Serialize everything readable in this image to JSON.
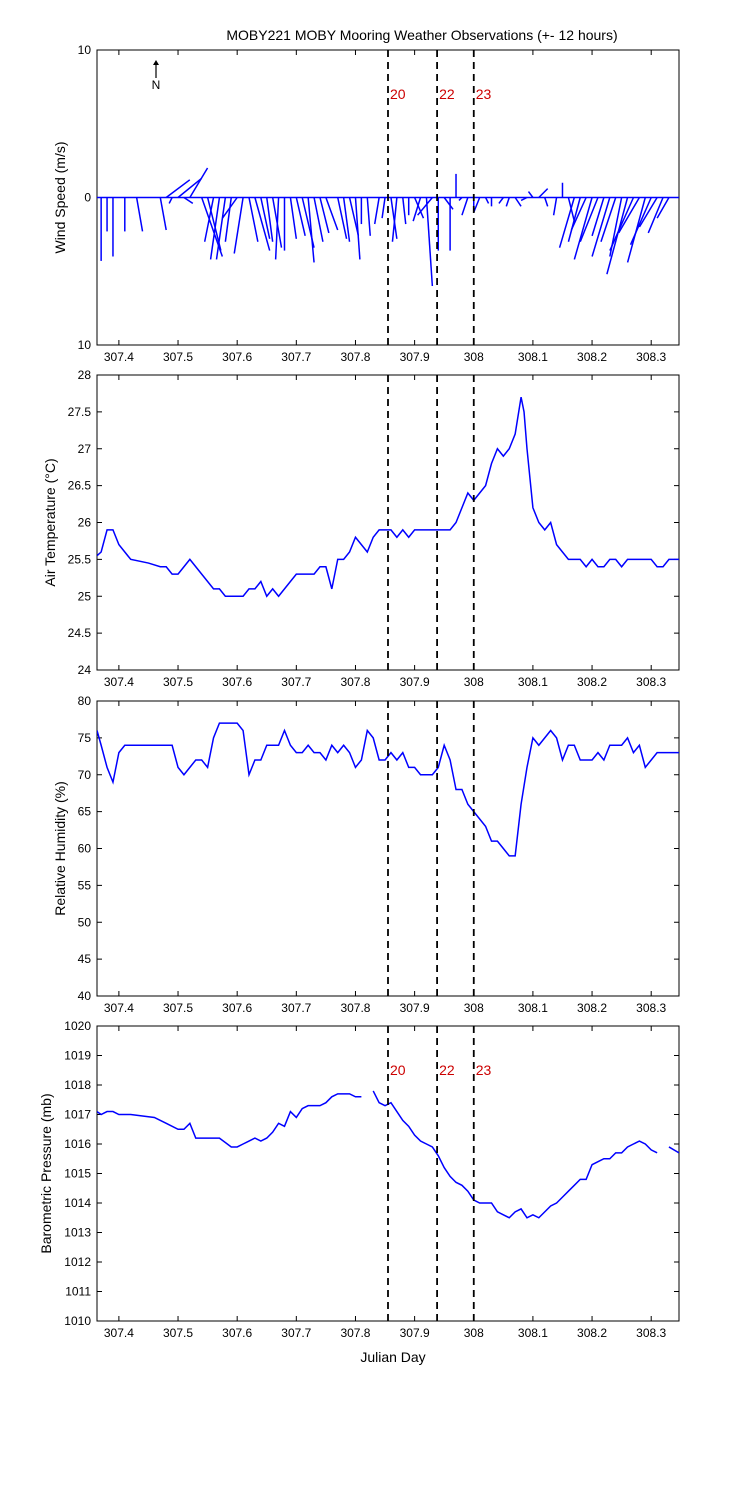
{
  "title": "MOBY221 MOBY Mooring Weather Observations (+- 12 hours)",
  "xlabel": "Julian Day",
  "x_ticks": [
    "307.4",
    "307.5",
    "307.6",
    "307.7",
    "307.8",
    "307.9",
    "308",
    "308.1",
    "308.2",
    "308.3"
  ],
  "x_tick_values": [
    307.4,
    307.5,
    307.6,
    307.7,
    307.8,
    307.9,
    308.0,
    308.1,
    308.2,
    308.3
  ],
  "xlim": [
    307.363,
    308.347
  ],
  "north_label": "N",
  "markers": [
    {
      "label": "20",
      "x": 307.855
    },
    {
      "label": "22",
      "x": 307.938
    },
    {
      "label": "23",
      "x": 308.0
    }
  ],
  "colors": {
    "data": "#0000ff",
    "marker_label": "#cc0000",
    "axis": "#000000"
  },
  "chart_data": [
    {
      "type": "line",
      "subtype": "wind-stick",
      "ylabel": "Wind Speed (m/s)",
      "ylim": [
        -10,
        10
      ],
      "y_ticks": [
        "10",
        "0",
        "10"
      ],
      "y_tick_values": [
        10,
        0,
        -10
      ],
      "note": "sticks drawn from baseline; u = east component, v = north component (m/s)",
      "series": [
        {
          "x": [
            307.37,
            307.38,
            307.39,
            307.41,
            307.43,
            307.47,
            307.48,
            307.49,
            307.5,
            307.51,
            307.52,
            307.54,
            307.55,
            307.56,
            307.57,
            307.58,
            307.59,
            307.6,
            307.61,
            307.62,
            307.63,
            307.64,
            307.65,
            307.66,
            307.67,
            307.68,
            307.69,
            307.7,
            307.71,
            307.72,
            307.73,
            307.74,
            307.75,
            307.77,
            307.78,
            307.79,
            307.8,
            307.81,
            307.82,
            307.84,
            307.85,
            307.86,
            307.87,
            307.88,
            307.89,
            307.9,
            307.91,
            307.92,
            307.93,
            307.94,
            307.95,
            307.96,
            307.97,
            307.98,
            307.99,
            308.0,
            308.01,
            308.02,
            308.03,
            308.05,
            308.06,
            308.07,
            308.09,
            308.1,
            308.11,
            308.12,
            308.14,
            308.15,
            308.16,
            308.17,
            308.18,
            308.19,
            308.2,
            308.21,
            308.22,
            308.23,
            308.24,
            308.25,
            308.26,
            308.27,
            308.28,
            308.29,
            308.3,
            308.31,
            308.32,
            308.33
          ],
          "u": [
            0,
            0,
            0,
            0,
            0.4,
            0.4,
            1.6,
            -0.2,
            1.6,
            0.6,
            1.2,
            1.4,
            0.9,
            -0.6,
            -0.6,
            -0.6,
            -0.4,
            -1.0,
            -0.6,
            0.6,
            1.0,
            0.6,
            0.4,
            0.6,
            -0.2,
            0,
            0.4,
            0.6,
            0.8,
            0.4,
            0.6,
            0.6,
            0.8,
            0.6,
            0.4,
            0.6,
            0.3,
            0,
            0.2,
            -0.3,
            -0.2,
            0.4,
            -0.3,
            0.2,
            0,
            0.6,
            -0.5,
            0.4,
            -1.0,
            0,
            0.6,
            0,
            0,
            -0.2,
            -0.4,
            0,
            -0.4,
            0.2,
            0,
            -0.3,
            -0.2,
            0.4,
            -0.4,
            -0.3,
            0.6,
            0.2,
            -0.2,
            0,
            0.4,
            -1.0,
            -0.8,
            -1.0,
            -1.2,
            -1.2,
            -0.8,
            -1.2,
            -1.0,
            -0.8,
            -1.4,
            -1.6,
            -1.4,
            -1.2,
            -1.4,
            -1.2,
            -1.0,
            -0.8
          ],
          "v": [
            -4.3,
            -2.3,
            -4.0,
            -2.3,
            -2.3,
            -2.2,
            1.2,
            -0.4,
            1.3,
            -0.4,
            2.0,
            -4.0,
            -3.6,
            -3.0,
            -4.2,
            -4.2,
            -3.0,
            -1.4,
            -3.8,
            -3.0,
            -3.6,
            -2.8,
            -3.0,
            -3.4,
            -4.2,
            -3.6,
            -2.8,
            -2.6,
            -3.4,
            -4.4,
            -3.0,
            -2.4,
            -2.2,
            -2.8,
            -3.0,
            -2.6,
            -4.2,
            -1.8,
            -2.6,
            -1.8,
            -1.4,
            -2.8,
            -3.0,
            -1.8,
            -1.2,
            -1.4,
            -1.6,
            -6.0,
            -1.2,
            -3.6,
            -0.8,
            -3.6,
            1.6,
            -0.2,
            -1.2,
            -0.8,
            -1.0,
            -0.4,
            -0.6,
            -0.4,
            -0.6,
            -0.6,
            -0.2,
            0.4,
            0.6,
            -0.6,
            -1.2,
            1.0,
            -1.6,
            -3.4,
            -3.0,
            -2.2,
            -4.2,
            -3.0,
            -2.6,
            -4.0,
            -3.0,
            -4.0,
            -5.2,
            -3.6,
            -2.4,
            -4.4,
            -3.2,
            -2.0,
            -2.4,
            -1.4
          ]
        }
      ]
    },
    {
      "type": "line",
      "ylabel": "Air Temperature (°C)",
      "ylim": [
        24,
        28
      ],
      "y_ticks": [
        "24",
        "24.5",
        "25",
        "25.5",
        "26",
        "26.5",
        "27",
        "27.5",
        "28"
      ],
      "y_tick_values": [
        24,
        24.5,
        25,
        25.5,
        26,
        26.5,
        27,
        27.5,
        28
      ],
      "series": [
        {
          "x": [
            307.363,
            307.37,
            307.38,
            307.39,
            307.4,
            307.42,
            307.45,
            307.47,
            307.48,
            307.49,
            307.5,
            307.52,
            307.54,
            307.56,
            307.57,
            307.58,
            307.59,
            307.6,
            307.61,
            307.62,
            307.63,
            307.64,
            307.65,
            307.66,
            307.67,
            307.68,
            307.69,
            307.7,
            307.71,
            307.72,
            307.73,
            307.74,
            307.75,
            307.76,
            307.77,
            307.78,
            307.79,
            307.8,
            307.81,
            307.82,
            307.83,
            307.84,
            307.85,
            307.86,
            307.87,
            307.88,
            307.89,
            307.9,
            307.91,
            307.92,
            307.93,
            307.94,
            307.95,
            307.96,
            307.97,
            307.98,
            307.99,
            308.0,
            308.01,
            308.02,
            308.03,
            308.04,
            308.05,
            308.06,
            308.07,
            308.08,
            308.085,
            308.09,
            308.1,
            308.11,
            308.12,
            308.13,
            308.14,
            308.15,
            308.16,
            308.17,
            308.18,
            308.19,
            308.2,
            308.21,
            308.22,
            308.23,
            308.24,
            308.25,
            308.26,
            308.27,
            308.28,
            308.29,
            308.3,
            308.31,
            308.32,
            308.33,
            308.34,
            308.347
          ],
          "values": [
            25.55,
            25.6,
            25.9,
            25.9,
            25.7,
            25.5,
            25.45,
            25.4,
            25.4,
            25.3,
            25.3,
            25.5,
            25.3,
            25.1,
            25.1,
            25.0,
            25.0,
            25.0,
            25.0,
            25.1,
            25.1,
            25.2,
            25.0,
            25.1,
            25.0,
            25.1,
            25.2,
            25.3,
            25.3,
            25.3,
            25.3,
            25.4,
            25.4,
            25.1,
            25.5,
            25.5,
            25.6,
            25.8,
            25.7,
            25.6,
            25.8,
            25.9,
            25.9,
            25.9,
            25.8,
            25.9,
            25.8,
            25.9,
            25.9,
            25.9,
            25.9,
            25.9,
            25.9,
            25.9,
            26.0,
            26.2,
            26.4,
            26.3,
            26.4,
            26.5,
            26.8,
            27.0,
            26.9,
            27.0,
            27.2,
            27.7,
            27.5,
            27.0,
            26.2,
            26.0,
            25.9,
            26.0,
            25.7,
            25.6,
            25.5,
            25.5,
            25.5,
            25.4,
            25.5,
            25.4,
            25.4,
            25.5,
            25.5,
            25.4,
            25.5,
            25.5,
            25.5,
            25.5,
            25.5,
            25.4,
            25.4,
            25.5,
            25.5,
            25.5
          ]
        }
      ]
    },
    {
      "type": "line",
      "ylabel": "Relative Humidity (%)",
      "ylim": [
        40,
        80
      ],
      "y_ticks": [
        "40",
        "45",
        "50",
        "55",
        "60",
        "65",
        "70",
        "75",
        "80"
      ],
      "y_tick_values": [
        40,
        45,
        50,
        55,
        60,
        65,
        70,
        75,
        80
      ],
      "series": [
        {
          "x": [
            307.363,
            307.37,
            307.38,
            307.39,
            307.4,
            307.41,
            307.42,
            307.44,
            307.46,
            307.48,
            307.49,
            307.5,
            307.51,
            307.52,
            307.53,
            307.54,
            307.55,
            307.56,
            307.57,
            307.58,
            307.59,
            307.6,
            307.61,
            307.62,
            307.63,
            307.64,
            307.65,
            307.66,
            307.67,
            307.68,
            307.69,
            307.7,
            307.71,
            307.72,
            307.73,
            307.74,
            307.75,
            307.76,
            307.77,
            307.78,
            307.79,
            307.8,
            307.81,
            307.82,
            307.83,
            307.84,
            307.85,
            307.86,
            307.87,
            307.88,
            307.89,
            307.9,
            307.91,
            307.92,
            307.93,
            307.94,
            307.95,
            307.96,
            307.97,
            307.98,
            307.99,
            308.0,
            308.01,
            308.02,
            308.03,
            308.04,
            308.05,
            308.06,
            308.07,
            308.08,
            308.09,
            308.1,
            308.11,
            308.12,
            308.13,
            308.14,
            308.15,
            308.16,
            308.17,
            308.18,
            308.19,
            308.2,
            308.21,
            308.22,
            308.23,
            308.24,
            308.25,
            308.26,
            308.27,
            308.28,
            308.29,
            308.3,
            308.31,
            308.32,
            308.33,
            308.34,
            308.347
          ],
          "values": [
            76,
            74,
            71,
            69,
            73,
            74,
            74,
            74,
            74,
            74,
            74,
            71,
            70,
            71,
            72,
            72,
            71,
            75,
            77,
            77,
            77,
            77,
            76,
            70,
            72,
            72,
            74,
            74,
            74,
            76,
            74,
            73,
            73,
            74,
            73,
            73,
            72,
            74,
            73,
            74,
            73,
            71,
            72,
            76,
            75,
            72,
            72,
            73,
            72,
            73,
            71,
            71,
            70,
            70,
            70,
            71,
            74,
            72,
            68,
            68,
            66,
            65,
            64,
            63,
            61,
            61,
            60,
            59,
            59,
            66,
            71,
            75,
            74,
            75,
            76,
            75,
            72,
            74,
            74,
            72,
            72,
            72,
            73,
            72,
            74,
            74,
            74,
            75,
            73,
            74,
            71,
            72,
            73,
            73,
            73,
            73,
            73
          ]
        }
      ]
    },
    {
      "type": "line",
      "ylabel": "Barometric Pressure (mb)",
      "ylim": [
        1010,
        1020
      ],
      "y_ticks": [
        "1010",
        "1011",
        "1012",
        "1013",
        "1014",
        "1015",
        "1016",
        "1017",
        "1018",
        "1019",
        "1020"
      ],
      "y_tick_values": [
        1010,
        1011,
        1012,
        1013,
        1014,
        1015,
        1016,
        1017,
        1018,
        1019,
        1020
      ],
      "series": [
        {
          "x": [
            307.363,
            307.37,
            307.38,
            307.39,
            307.4,
            307.42,
            307.44,
            307.46,
            307.48,
            307.5,
            307.51,
            307.52,
            307.53,
            307.55,
            307.57,
            307.59,
            307.6,
            307.61,
            307.62,
            307.63,
            307.64,
            307.65,
            307.66,
            307.67,
            307.68,
            307.69,
            307.7,
            307.71,
            307.72,
            307.73,
            307.74,
            307.75,
            307.76,
            307.77,
            307.78,
            307.79,
            307.8,
            307.81
          ],
          "values": [
            1017.1,
            1017.0,
            1017.1,
            1017.1,
            1017.0,
            1017.0,
            1016.95,
            1016.9,
            1016.7,
            1016.5,
            1016.5,
            1016.7,
            1016.2,
            1016.2,
            1016.2,
            1015.9,
            1015.9,
            1016.0,
            1016.1,
            1016.2,
            1016.1,
            1016.2,
            1016.4,
            1016.7,
            1016.6,
            1017.1,
            1016.9,
            1017.2,
            1017.3,
            1017.3,
            1017.3,
            1017.4,
            1017.6,
            1017.7,
            1017.7,
            1017.7,
            1017.6,
            1017.6
          ]
        },
        {
          "x": [
            307.83,
            307.84,
            307.85,
            307.86,
            307.87,
            307.88,
            307.89,
            307.9,
            307.91,
            307.92,
            307.93,
            307.94,
            307.95,
            307.96,
            307.97,
            307.98,
            307.99,
            308.0,
            308.01,
            308.02,
            308.03,
            308.04,
            308.05,
            308.06,
            308.07,
            308.08,
            308.09,
            308.1,
            308.11,
            308.12,
            308.13,
            308.14,
            308.15,
            308.16,
            308.17,
            308.18,
            308.19,
            308.2,
            308.21,
            308.22,
            308.23,
            308.24,
            308.25,
            308.26,
            308.27,
            308.28,
            308.29,
            308.3,
            308.31
          ],
          "values": [
            1017.8,
            1017.4,
            1017.3,
            1017.4,
            1017.1,
            1016.8,
            1016.6,
            1016.3,
            1016.1,
            1016.0,
            1015.9,
            1015.6,
            1015.2,
            1014.9,
            1014.7,
            1014.6,
            1014.4,
            1014.1,
            1014.0,
            1014.0,
            1014.0,
            1013.7,
            1013.6,
            1013.5,
            1013.7,
            1013.8,
            1013.5,
            1013.6,
            1013.5,
            1013.7,
            1013.9,
            1014.0,
            1014.2,
            1014.4,
            1014.6,
            1014.8,
            1014.8,
            1015.3,
            1015.4,
            1015.5,
            1015.5,
            1015.7,
            1015.7,
            1015.9,
            1016.0,
            1016.1,
            1016.0,
            1015.8,
            1015.7
          ]
        },
        {
          "x": [
            308.33,
            308.347
          ],
          "values": [
            1015.9,
            1015.7
          ]
        }
      ]
    }
  ]
}
